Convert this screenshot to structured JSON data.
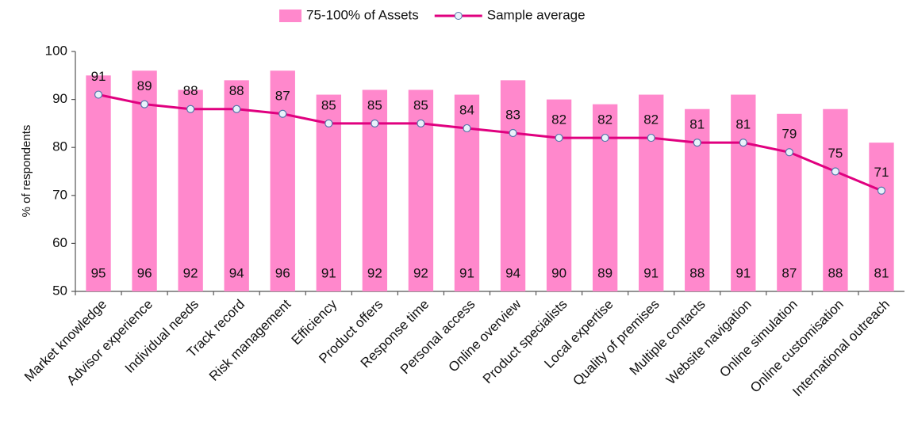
{
  "chart_data": {
    "type": "combo",
    "ylabel": "% of respondents",
    "categories": [
      "Market knowledge",
      "Advisor experience",
      "Individual needs",
      "Track record",
      "Risk management",
      "Efficiency",
      "Product offers",
      "Response time",
      "Personal access",
      "Online overview",
      "Product specialists",
      "Local expertise",
      "Quality of premises",
      "Multiple contacts",
      "Website navigation",
      "Online simulation",
      "Online customisation",
      "International outreach"
    ],
    "series": [
      {
        "name": "75-100% of Assets",
        "type": "bar",
        "color": "#ff88cc",
        "values": [
          95,
          96,
          92,
          94,
          96,
          91,
          92,
          92,
          91,
          94,
          90,
          89,
          91,
          88,
          91,
          87,
          88,
          81
        ]
      },
      {
        "name": "Sample average",
        "type": "line",
        "color": "#e0007f",
        "values": [
          91,
          89,
          88,
          88,
          87,
          85,
          85,
          85,
          84,
          83,
          82,
          82,
          82,
          81,
          81,
          79,
          75,
          71
        ]
      }
    ],
    "ylim": [
      50,
      100
    ],
    "yticks": [
      50,
      60,
      70,
      80,
      90,
      100
    ],
    "grid": false,
    "legend": "top"
  }
}
